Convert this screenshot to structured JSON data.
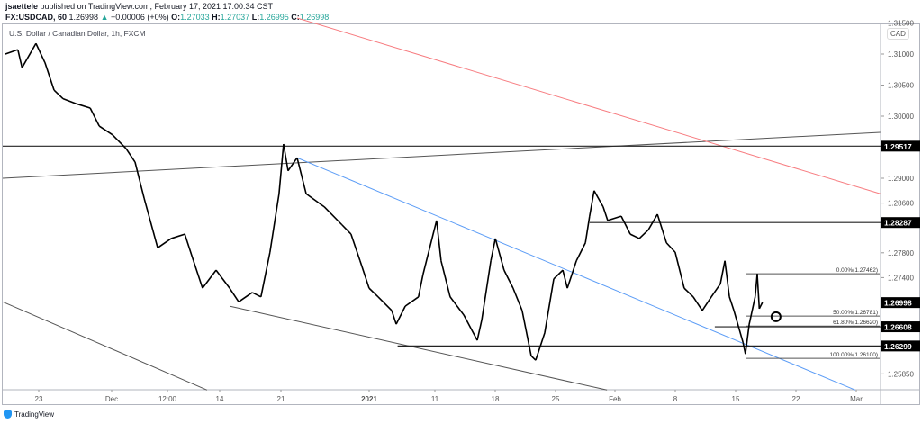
{
  "header": {
    "publisher": "jsaettele",
    "published_text": "published on TradingView.com, February 17, 2021 17:00:34 CST",
    "symbol": "FX:USDCAD, 60",
    "last": "1.26998",
    "change_arrow": "▲",
    "change": "+0.00006 (+0%)",
    "o_label": "O:",
    "o": "1.27033",
    "h_label": "H:",
    "h": "1.27037",
    "l_label": "L:",
    "l": "1.26995",
    "c_label": "C:",
    "c": "1.26998"
  },
  "legend": "U.S. Dollar / Canadian Dollar, 1h, FXCM",
  "currency": "CAD",
  "branding": "TradingView",
  "colors": {
    "up": "#26a69a",
    "price": "#000000",
    "red_trendline": "#f77c80",
    "blue_trendline": "#5b9cf6",
    "black_trendline": "#555555",
    "level_label_bg": "#000000"
  },
  "chart_data": {
    "type": "line",
    "title": "U.S. Dollar / Canadian Dollar, 1h, FXCM",
    "ylim": [
      1.2559,
      1.3158
    ],
    "grid": false,
    "y_ticks": [
      "1.31500",
      "1.31000",
      "1.30500",
      "1.30000",
      "1.29000",
      "1.28600",
      "1.27800",
      "1.27400",
      "1.25850"
    ],
    "x_ticks": [
      "23",
      "Dec",
      "12:00",
      "14",
      "21",
      "2021",
      "11",
      "18",
      "25",
      "Feb",
      "8",
      "15",
      "22",
      "Mar"
    ],
    "series": [
      {
        "points": [
          [
            "2020-11-19 00:00",
            1.31
          ],
          [
            "2020-11-20 12:00",
            1.3107
          ],
          [
            "2020-11-21 00:00",
            1.3078
          ],
          [
            "2020-11-22 16:00",
            1.3117
          ],
          [
            "2020-11-23 18:00",
            1.3086
          ],
          [
            "2020-11-24 20:00",
            1.3042
          ],
          [
            "2020-11-25 22:00",
            1.3028
          ],
          [
            "2020-11-27 12:00",
            1.302
          ],
          [
            "2020-11-29 04:00",
            1.3013
          ],
          [
            "2020-11-30 06:00",
            1.2984
          ],
          [
            "2020-12-01 20:00",
            1.297
          ],
          [
            "2020-12-03 11:00",
            1.2948
          ],
          [
            "2020-12-04 13:00",
            1.2926
          ],
          [
            "2020-12-05 15:00",
            1.2868
          ],
          [
            "2020-12-07 06:00",
            1.2788
          ],
          [
            "2020-12-08 21:00",
            1.2803
          ],
          [
            "2020-12-10 12:00",
            1.281
          ],
          [
            "2020-12-11 13:00",
            1.2767
          ],
          [
            "2020-12-12 15:00",
            1.2723
          ],
          [
            "2020-12-14 06:00",
            1.2752
          ],
          [
            "2020-12-15 21:00",
            1.2723
          ],
          [
            "2020-12-16 23:00",
            1.2701
          ],
          [
            "2020-12-18 14:00",
            1.2716
          ],
          [
            "2020-12-19 15:00",
            1.2709
          ],
          [
            "2020-12-20 17:00",
            1.2781
          ],
          [
            "2020-12-21 19:00",
            1.2875
          ],
          [
            "2020-12-22 08:00",
            1.2955
          ],
          [
            "2020-12-22 21:00",
            1.2912
          ],
          [
            "2020-12-23 23:00",
            1.2933
          ],
          [
            "2020-12-25 01:00",
            1.2875
          ],
          [
            "2020-12-27 05:00",
            1.2854
          ],
          [
            "2020-12-29 08:00",
            1.2825
          ],
          [
            "2020-12-30 10:00",
            1.281
          ],
          [
            "2020-12-31 12:00",
            1.2767
          ],
          [
            "2021-01-01 14:00",
            1.2723
          ],
          [
            "2021-01-02 16:00",
            1.2709
          ],
          [
            "2021-01-04 07:00",
            1.2687
          ],
          [
            "2021-01-04 20:00",
            1.2665
          ],
          [
            "2021-01-05 22:00",
            1.2694
          ],
          [
            "2021-01-07 12:00",
            1.2709
          ],
          [
            "2021-01-08 01:00",
            1.2745
          ],
          [
            "2021-01-09 16:00",
            1.2832
          ],
          [
            "2021-01-10 05:00",
            1.2767
          ],
          [
            "2021-01-11 07:00",
            1.2709
          ],
          [
            "2021-01-12 22:00",
            1.268
          ],
          [
            "2021-01-14 13:00",
            1.2639
          ],
          [
            "2021-01-15 02:00",
            1.2672
          ],
          [
            "2021-01-16 04:00",
            1.2767
          ],
          [
            "2021-01-16 17:00",
            1.2803
          ],
          [
            "2021-01-17 18:00",
            1.2752
          ],
          [
            "2021-01-18 20:00",
            1.2723
          ],
          [
            "2021-01-19 22:00",
            1.2687
          ],
          [
            "2021-01-21 00:00",
            1.2614
          ],
          [
            "2021-01-21 13:00",
            1.2607
          ],
          [
            "2021-01-22 15:00",
            1.2651
          ],
          [
            "2021-01-23 17:00",
            1.2738
          ],
          [
            "2021-01-24 19:00",
            1.2752
          ],
          [
            "2021-01-25 08:00",
            1.2723
          ],
          [
            "2021-01-26 10:00",
            1.2767
          ],
          [
            "2021-01-27 12:00",
            1.2796
          ],
          [
            "2021-01-28 00:00",
            1.2839
          ],
          [
            "2021-01-28 13:00",
            1.288
          ],
          [
            "2021-01-29 15:00",
            1.2854
          ],
          [
            "2021-01-30 04:00",
            1.2832
          ],
          [
            "2021-01-31 19:00",
            1.2839
          ],
          [
            "2021-02-01 21:00",
            1.281
          ],
          [
            "2021-02-02 23:00",
            1.2803
          ],
          [
            "2021-02-04 01:00",
            1.2817
          ],
          [
            "2021-02-05 03:00",
            1.2842
          ],
          [
            "2021-02-06 05:00",
            1.2796
          ],
          [
            "2021-02-07 06:00",
            1.2781
          ],
          [
            "2021-02-08 08:00",
            1.2723
          ],
          [
            "2021-02-09 10:00",
            1.2709
          ],
          [
            "2021-02-10 12:00",
            1.2687
          ],
          [
            "2021-02-11 14:00",
            1.2709
          ],
          [
            "2021-02-12 16:00",
            1.273
          ],
          [
            "2021-02-13 05:00",
            1.2767
          ],
          [
            "2021-02-13 18:00",
            1.2709
          ],
          [
            "2021-02-14 07:00",
            1.2687
          ],
          [
            "2021-02-15 09:00",
            1.2636
          ],
          [
            "2021-02-15 16:00",
            1.2617
          ],
          [
            "2021-02-16 03:00",
            1.2665
          ],
          [
            "2021-02-16 20:00",
            1.2709
          ],
          [
            "2021-02-17 02:00",
            1.2746
          ],
          [
            "2021-02-17 08:00",
            1.269
          ],
          [
            "2021-02-17 17:00",
            1.27
          ]
        ]
      }
    ],
    "horizontal_levels": [
      {
        "label": "1.29517",
        "price": 1.29517,
        "start": "2020-11-18 14:00"
      },
      {
        "label": "1.28287",
        "price": 1.28287,
        "start": "2021-01-28 00:00"
      },
      {
        "label": "1.26608",
        "price": 1.26608,
        "start": "2021-02-12 00:00"
      },
      {
        "label": "1.26299",
        "price": 1.26299,
        "start": "2021-01-05 00:00"
      }
    ],
    "last_price_label": {
      "label": "1.26998",
      "price": 1.26998
    },
    "fibonacci": {
      "start": "2021-02-15 19:00",
      "levels": [
        {
          "label": "0.00%(1.27462)",
          "price": 1.27462
        },
        {
          "label": "50.00%(1.26781)",
          "price": 1.26781
        },
        {
          "label": "61.80%(1.26620)",
          "price": 1.2662
        },
        {
          "label": "100.00%(1.26100)",
          "price": 1.261
        }
      ]
    },
    "trendlines": [
      {
        "color": "black",
        "from": [
          "2020-11-18 14:00",
          1.29
        ],
        "to": [
          "2021-03-03 20:00",
          1.2974
        ]
      },
      {
        "color": "red",
        "from": [
          "2020-12-23 23:00",
          1.3158
        ],
        "to": [
          "2021-03-03 20:00",
          1.2875
        ]
      },
      {
        "color": "blue",
        "from": [
          "2020-12-23 23:00",
          1.2933
        ],
        "to": [
          "2021-02-28 20:00",
          1.2559
        ]
      },
      {
        "color": "black",
        "from": [
          "2020-12-15 21:00",
          1.2694
        ],
        "to": [
          "2021-01-30 02:00",
          1.2559
        ]
      },
      {
        "color": "black",
        "from": [
          "2020-11-18 14:00",
          1.2701
        ],
        "to": [
          "2020-12-13 04:00",
          1.2559
        ]
      }
    ],
    "circle_marker": {
      "date": "2021-02-19 08:00",
      "price": 1.2677
    }
  }
}
